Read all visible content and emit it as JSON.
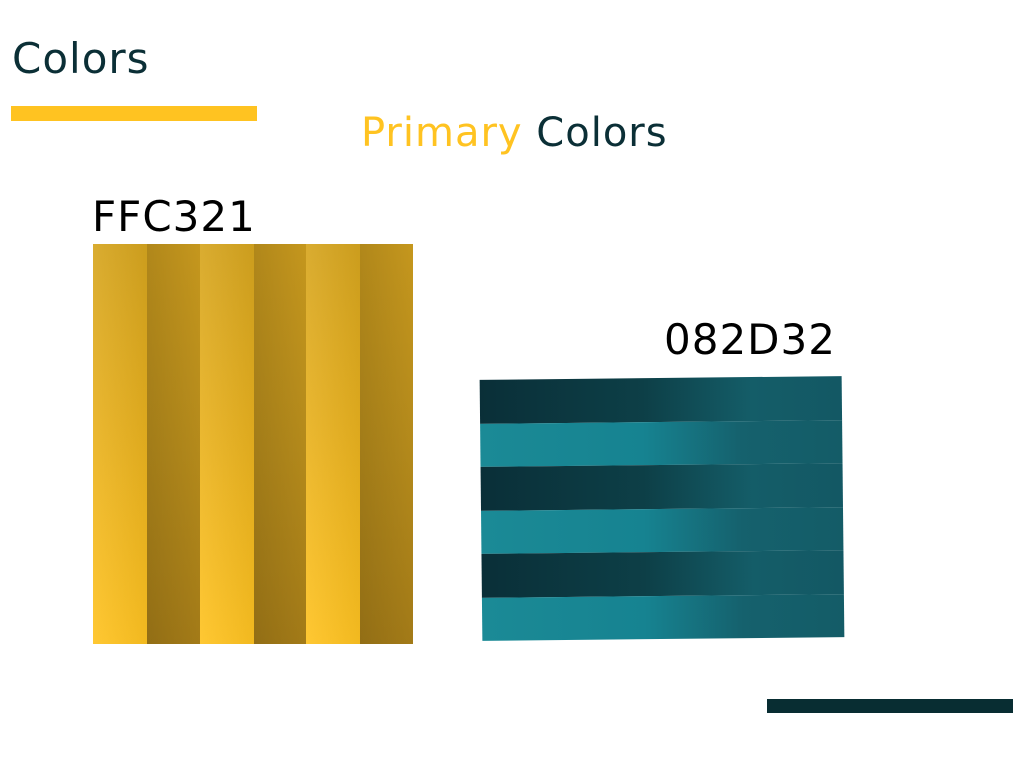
{
  "page": {
    "title": "Colors",
    "section_heading_accent": "Primary",
    "section_heading_rest": "Colors"
  },
  "swatches": [
    {
      "label": "FFC321",
      "color": "#FFC321"
    },
    {
      "label": "082D32",
      "color": "#082D32"
    }
  ],
  "theme": {
    "accent": "#FFC321",
    "dark": "#082D32"
  }
}
